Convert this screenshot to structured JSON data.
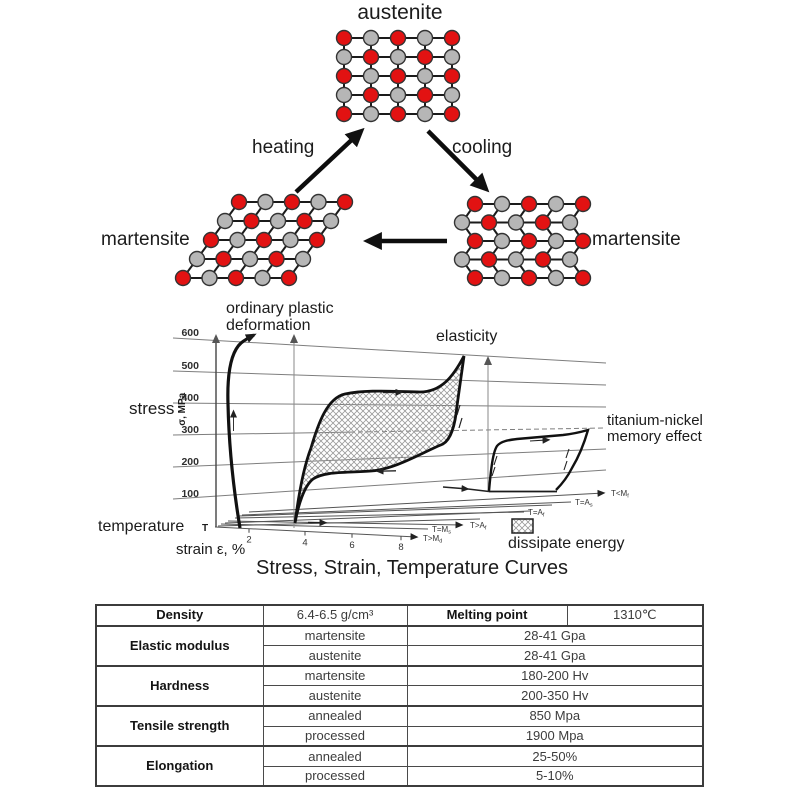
{
  "phase": {
    "austenite": "austenite",
    "martensite_left": "martensite",
    "martensite_right": "martensite",
    "heating": "heating",
    "cooling": "cooling"
  },
  "colors": {
    "atom_red": "#e21212",
    "atom_gray": "#b6b6b6",
    "bond": "#1b1b1b",
    "curve": "#111111",
    "grid": "#7e7e7e"
  },
  "chart": {
    "title": "Stress, Strain, Temperature Curves",
    "stress_label": "stress",
    "sigma_axis": "σ, MPa",
    "temperature_label": "temperature",
    "temperature_symbol": "T",
    "strain_label": "strain ε, %",
    "yticks": [
      "600",
      "500",
      "400",
      "300",
      "200",
      "100"
    ],
    "xticks": [
      "2",
      "4",
      "6",
      "8"
    ],
    "temp_labels": [
      "T>M_d",
      "T=M_s",
      "T>A_f",
      "T=A_f",
      "T=A_s",
      "T<M_f"
    ],
    "ann_plastic_1": "ordinary plastic",
    "ann_plastic_2": "deformation",
    "ann_elasticity": "elasticity",
    "ann_memory_1": "titanium-nickel",
    "ann_memory_2": "memory effect",
    "ann_dissipate": "dissipate energy"
  },
  "chart_data": {
    "type": "line",
    "title": "Stress, Strain, Temperature Curves",
    "xlabel": "strain ε, %",
    "ylabel": "σ, MPa",
    "x_ticks": [
      2,
      4,
      6,
      8
    ],
    "y_ticks": [
      100,
      200,
      300,
      400,
      500,
      600
    ],
    "ylim": [
      0,
      620
    ],
    "grid": true,
    "temperature_planes": [
      "T>Md",
      "T=Ms",
      "T>Af",
      "T=Af",
      "T=As",
      "T<Mf"
    ],
    "series": [
      {
        "name": "ordinary plastic deformation (T>Md)",
        "x": [
          0,
          0.2,
          0.4,
          0.8,
          1.2
        ],
        "y": [
          0,
          300,
          520,
          590,
          620
        ]
      },
      {
        "name": "elasticity loading (T>Af)",
        "x": [
          0,
          0.6,
          1.2,
          3.5,
          5.2,
          6.0
        ],
        "y": [
          0,
          230,
          400,
          425,
          440,
          540
        ]
      },
      {
        "name": "elasticity unloading (T>Af)",
        "x": [
          6.0,
          5.6,
          5.2,
          3.5,
          1.5,
          0.8,
          0
        ],
        "y": [
          540,
          430,
          320,
          280,
          255,
          200,
          0
        ]
      },
      {
        "name": "titanium-nickel memory effect loading (T<Mf)",
        "x": [
          0,
          0.3,
          0.8,
          3.2,
          4.3
        ],
        "y": [
          0,
          90,
          155,
          175,
          210
        ]
      },
      {
        "name": "titanium-nickel memory effect unloading (T<Mf)",
        "x": [
          4.3,
          4.0,
          3.4
        ],
        "y": [
          210,
          100,
          0
        ]
      }
    ],
    "legend": [
      {
        "label": "dissipate energy",
        "swatch": "crosshatch"
      }
    ]
  },
  "table": {
    "row1": {
      "c1": "Density",
      "c2": "6.4-6.5 g/cm³",
      "c3": "Melting point",
      "c4": "1310℃"
    },
    "groups": [
      {
        "name": "Elastic modulus",
        "rows": [
          [
            "martensite",
            "28-41 Gpa"
          ],
          [
            "austenite",
            "28-41 Gpa"
          ]
        ]
      },
      {
        "name": "Hardness",
        "rows": [
          [
            "martensite",
            "180-200 Hv"
          ],
          [
            "austenite",
            "200-350 Hv"
          ]
        ]
      },
      {
        "name": "Tensile strength",
        "rows": [
          [
            "annealed",
            "850 Mpa"
          ],
          [
            "processed",
            "1900 Mpa"
          ]
        ]
      },
      {
        "name": "Elongation",
        "rows": [
          [
            "annealed",
            "25-50%"
          ],
          [
            "processed",
            "5-10%"
          ]
        ]
      }
    ]
  }
}
